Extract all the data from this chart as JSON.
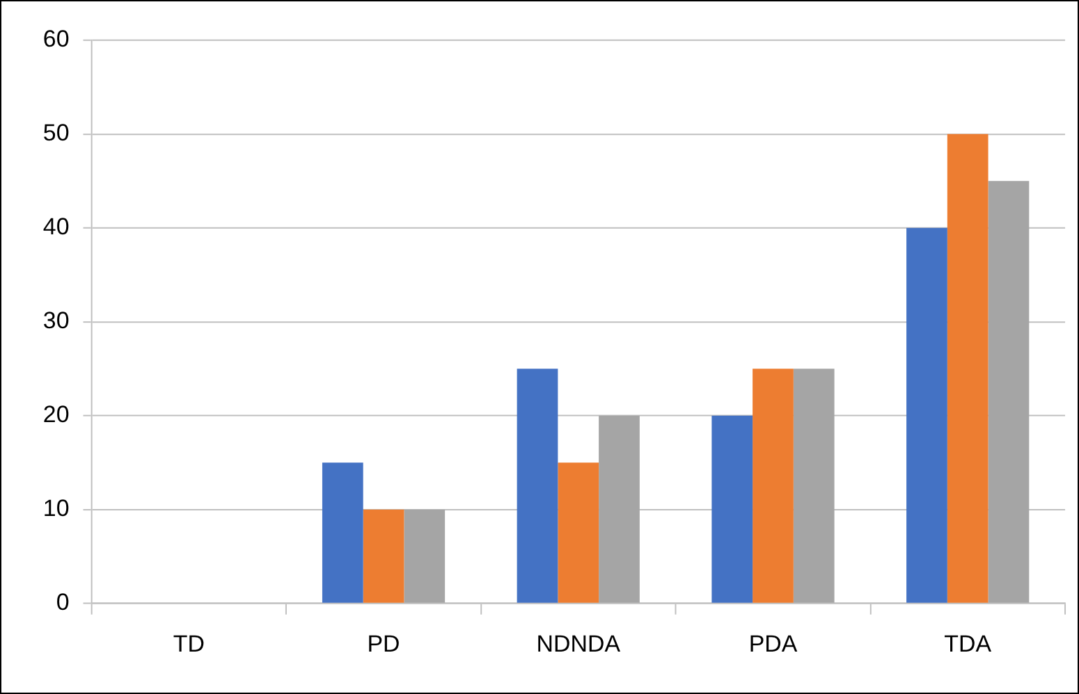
{
  "chart_data": {
    "type": "bar",
    "categories": [
      "TD",
      "PD",
      "NDNDA",
      "PDA",
      "TDA"
    ],
    "series": [
      {
        "color": "#4472c4",
        "values": [
          0,
          15,
          25,
          20,
          40
        ]
      },
      {
        "color": "#ed7d31",
        "values": [
          0,
          10,
          15,
          25,
          50
        ]
      },
      {
        "color": "#a5a5a5",
        "values": [
          0,
          10,
          20,
          25,
          45
        ]
      }
    ],
    "ylim": [
      0,
      60
    ],
    "yticks": [
      0,
      10,
      20,
      30,
      40,
      50,
      60
    ],
    "grid": "y",
    "legend": false
  }
}
